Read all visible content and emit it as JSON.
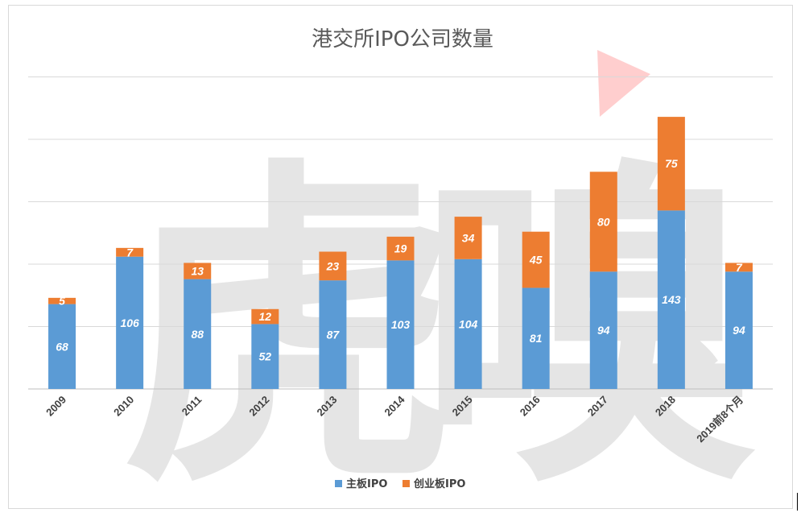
{
  "chart_data": {
    "type": "bar",
    "stacked": true,
    "title": "港交所IPO公司数量",
    "categories": [
      "2009",
      "2010",
      "2011",
      "2012",
      "2013",
      "2014",
      "2015",
      "2016",
      "2017",
      "2018",
      "2019前8个月"
    ],
    "series": [
      {
        "name": "主板IPO",
        "color": "#5b9bd5",
        "values": [
          68,
          106,
          88,
          52,
          87,
          103,
          104,
          81,
          94,
          143,
          94
        ]
      },
      {
        "name": "创业板IPO",
        "color": "#ed7d31",
        "values": [
          5,
          7,
          13,
          12,
          23,
          19,
          34,
          45,
          80,
          75,
          7
        ]
      }
    ],
    "ylim": [
      0,
      250
    ],
    "gridlines": true,
    "y_tick_labels_shown": false,
    "legend_position": "bottom"
  },
  "watermark": {
    "text": "虎嗅",
    "color": "#ff0000"
  }
}
